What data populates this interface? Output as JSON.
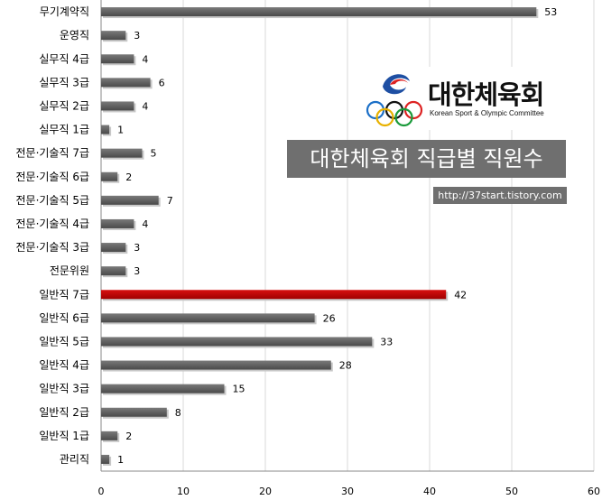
{
  "chart_data": {
    "type": "bar",
    "orientation": "horizontal",
    "categories": [
      "무기계약직",
      "운영직",
      "실무직 4급",
      "실무직 3급",
      "실무직 2급",
      "실무직 1급",
      "전문·기술직 7급",
      "전문·기술직 6급",
      "전문·기술직 5급",
      "전문·기술직 4급",
      "전문·기술직 3급",
      "전문위원",
      "일반직 7급",
      "일반직 6급",
      "일반직 5급",
      "일반직 4급",
      "일반직 3급",
      "일반직 2급",
      "일반직 1급",
      "관리직"
    ],
    "values": [
      53,
      3,
      4,
      6,
      4,
      1,
      5,
      2,
      7,
      4,
      3,
      3,
      42,
      26,
      33,
      28,
      15,
      8,
      2,
      1
    ],
    "highlight_index": 12,
    "xlim": [
      0,
      60
    ],
    "xticks": [
      0,
      10,
      20,
      30,
      40,
      50,
      60
    ],
    "grid": "vertical",
    "colors": {
      "bar": "#5a5a5a",
      "highlight": "#c00000",
      "grid": "#d9d9d9"
    }
  },
  "banner": {
    "title": "대한체육회 직급별 직원수",
    "url": "http://37start.tistory.com"
  },
  "logo": {
    "name": "대한체육회",
    "subtitle": "Korean Sport & Olympic Committee"
  }
}
